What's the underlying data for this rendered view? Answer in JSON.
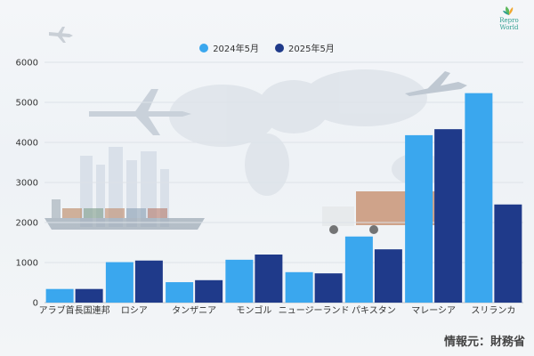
{
  "brand": {
    "logo_text": "Repro World"
  },
  "source_note": "情報元：財務省",
  "chart_data": {
    "type": "bar",
    "categories": [
      "アラブ首長国連邦",
      "ロシア",
      "タンザニア",
      "モンゴル",
      "ニュージーランド",
      "パキスタン",
      "マレーシア",
      "スリランカ"
    ],
    "series": [
      {
        "name": "2024年5月",
        "color": "#3aa7ee",
        "values": [
          340,
          1010,
          510,
          1070,
          760,
          1650,
          4180,
          5230
        ]
      },
      {
        "name": "2025年5月",
        "color": "#1f3a8a",
        "values": [
          340,
          1050,
          560,
          1200,
          730,
          1330,
          4330,
          2450
        ]
      }
    ],
    "yticks": [
      0,
      1000,
      2000,
      3000,
      4000,
      5000,
      6000
    ],
    "ylim": [
      0,
      6000
    ],
    "grid": true,
    "legend_position": "top-center",
    "title": "",
    "xlabel": "",
    "ylabel": ""
  }
}
